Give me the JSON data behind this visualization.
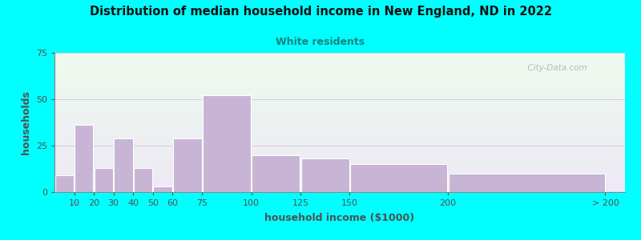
{
  "title": "Distribution of median household income in New England, ND in 2022",
  "subtitle": "White residents",
  "xlabel": "household income ($1000)",
  "ylabel": "households",
  "background_outer": "#00FFFF",
  "background_inner_top": "#edfaed",
  "background_inner_bottom": "#ede8f5",
  "bar_color": "#c8b4d4",
  "bar_edge_color": "#ffffff",
  "title_color": "#111111",
  "subtitle_color": "#1a8080",
  "axis_label_color": "#505050",
  "tick_color": "#505050",
  "watermark": "  City-Data.com",
  "xlabels": [
    "10",
    "20",
    "30",
    "40",
    "50",
    "60",
    "75",
    "100",
    "125",
    "150",
    "200",
    "> 200"
  ],
  "bar_heights": [
    9,
    36,
    13,
    29,
    13,
    3,
    29,
    52,
    20,
    18,
    15,
    10
  ],
  "bar_lefts": [
    0,
    10,
    20,
    30,
    40,
    50,
    60,
    75,
    100,
    125,
    150,
    200
  ],
  "bar_widths": [
    10,
    10,
    10,
    10,
    10,
    10,
    15,
    25,
    25,
    25,
    50,
    80
  ],
  "xtick_positions": [
    0,
    10,
    20,
    30,
    40,
    50,
    60,
    75,
    100,
    125,
    150,
    200,
    280
  ],
  "xlim": [
    0,
    290
  ],
  "ylim": [
    0,
    75
  ],
  "yticks": [
    0,
    25,
    50,
    75
  ],
  "grid_color": "#cccccc",
  "spine_color": "#888888"
}
